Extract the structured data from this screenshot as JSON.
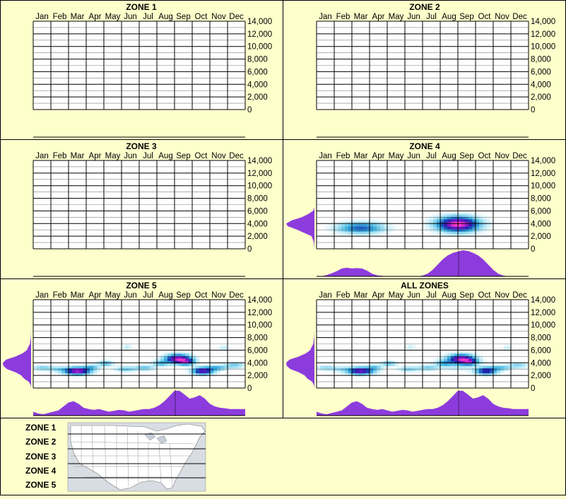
{
  "chart_data": {
    "type": "heatmap",
    "months": [
      "Jan",
      "Feb",
      "Mar",
      "Apr",
      "May",
      "Jun",
      "Jul",
      "Aug",
      "Sep",
      "Oct",
      "Nov",
      "Dec"
    ],
    "y_ticks": [
      "14,000",
      "12,000",
      "10,000",
      "8,000",
      "6,000",
      "4,000",
      "2,000",
      "0"
    ],
    "ylim": [
      0,
      14000
    ],
    "panels": [
      {
        "title": "ZONE 1",
        "has_data": false,
        "blobs": [],
        "month_profile": [],
        "elev_profile": []
      },
      {
        "title": "ZONE 2",
        "has_data": false,
        "blobs": [],
        "month_profile": [],
        "elev_profile": []
      },
      {
        "title": "ZONE 3",
        "has_data": false,
        "blobs": [],
        "month_profile": [],
        "elev_profile": []
      },
      {
        "title": "ZONE 4",
        "has_data": true,
        "blobs": [
          {
            "month": 2.5,
            "elev": 3300,
            "sx": 0.9,
            "sy": 600,
            "w": 0.25
          },
          {
            "month": 8.0,
            "elev": 3900,
            "sx": 0.8,
            "sy": 800,
            "w": 0.5
          }
        ],
        "month_profile": [
          0,
          0,
          0.05,
          0.12,
          0.2,
          0.3,
          0.33,
          0.3,
          0.32,
          0.3,
          0.22,
          0.1,
          0.04,
          0.02,
          0,
          0,
          0,
          0,
          0,
          0,
          0,
          0.03,
          0.1,
          0.25,
          0.45,
          0.65,
          0.8,
          0.9,
          0.95,
          1.0,
          0.97,
          0.9,
          0.8,
          0.65,
          0.45,
          0.25,
          0.1,
          0.03,
          0,
          0,
          0,
          0,
          0
        ],
        "elev_profile": [
          [
            0,
            0
          ],
          [
            1000,
            0.02
          ],
          [
            2000,
            0.1
          ],
          [
            3000,
            0.6
          ],
          [
            3600,
            0.95
          ],
          [
            4000,
            1.0
          ],
          [
            4500,
            0.8
          ],
          [
            5000,
            0.45
          ],
          [
            5500,
            0.22
          ],
          [
            6000,
            0.05
          ],
          [
            6500,
            0
          ]
        ]
      },
      {
        "title": "ZONE 5",
        "has_data": true,
        "blobs": [
          {
            "month": 0.5,
            "elev": 3200,
            "sx": 0.4,
            "sy": 300,
            "w": 0.25
          },
          {
            "month": 1.4,
            "elev": 3000,
            "sx": 0.4,
            "sy": 300,
            "w": 0.2
          },
          {
            "month": 2.5,
            "elev": 2700,
            "sx": 0.5,
            "sy": 400,
            "w": 1.0
          },
          {
            "month": 3.3,
            "elev": 3300,
            "sx": 0.3,
            "sy": 300,
            "w": 0.3
          },
          {
            "month": 4.1,
            "elev": 3900,
            "sx": 0.3,
            "sy": 300,
            "w": 0.35
          },
          {
            "month": 5.2,
            "elev": 3000,
            "sx": 0.4,
            "sy": 300,
            "w": 0.3
          },
          {
            "month": 5.3,
            "elev": 6500,
            "sx": 0.2,
            "sy": 300,
            "w": 0.15
          },
          {
            "month": 6.3,
            "elev": 3200,
            "sx": 0.4,
            "sy": 300,
            "w": 0.3
          },
          {
            "month": 7.2,
            "elev": 3900,
            "sx": 0.3,
            "sy": 300,
            "w": 0.35
          },
          {
            "month": 8.2,
            "elev": 4600,
            "sx": 0.5,
            "sy": 500,
            "w": 1.0
          },
          {
            "month": 8.7,
            "elev": 4100,
            "sx": 0.3,
            "sy": 300,
            "w": 0.6
          },
          {
            "month": 9.6,
            "elev": 2700,
            "sx": 0.4,
            "sy": 400,
            "w": 0.85
          },
          {
            "month": 10.4,
            "elev": 3200,
            "sx": 0.4,
            "sy": 300,
            "w": 0.35
          },
          {
            "month": 11.4,
            "elev": 3600,
            "sx": 0.4,
            "sy": 300,
            "w": 0.3
          },
          {
            "month": 10.8,
            "elev": 6400,
            "sx": 0.2,
            "sy": 300,
            "w": 0.15
          }
        ],
        "month_profile": [
          0.15,
          0.08,
          0.05,
          0.1,
          0.15,
          0.2,
          0.35,
          0.5,
          0.55,
          0.45,
          0.3,
          0.25,
          0.22,
          0.25,
          0.2,
          0.15,
          0.18,
          0.22,
          0.2,
          0.15,
          0.18,
          0.22,
          0.25,
          0.25,
          0.3,
          0.4,
          0.55,
          0.75,
          0.95,
          0.95,
          0.8,
          0.65,
          0.7,
          0.78,
          0.65,
          0.45,
          0.35,
          0.3,
          0.28,
          0.25,
          0.25,
          0.25,
          0.25
        ],
        "elev_profile": [
          [
            0,
            0
          ],
          [
            500,
            0.02
          ],
          [
            1000,
            0.08
          ],
          [
            1500,
            0.25
          ],
          [
            2000,
            0.35
          ],
          [
            2500,
            0.55
          ],
          [
            3000,
            0.85
          ],
          [
            3500,
            0.98
          ],
          [
            4000,
            1.0
          ],
          [
            4500,
            0.88
          ],
          [
            5000,
            0.55
          ],
          [
            5500,
            0.3
          ],
          [
            6000,
            0.15
          ],
          [
            6500,
            0.1
          ],
          [
            7000,
            0.04
          ],
          [
            8000,
            0.01
          ],
          [
            9000,
            0
          ]
        ]
      },
      {
        "title": "ALL ZONES",
        "has_data": true,
        "blobs": [
          {
            "month": 0.5,
            "elev": 3200,
            "sx": 0.4,
            "sy": 300,
            "w": 0.25
          },
          {
            "month": 1.4,
            "elev": 3000,
            "sx": 0.4,
            "sy": 300,
            "w": 0.2
          },
          {
            "month": 2.5,
            "elev": 2700,
            "sx": 0.5,
            "sy": 400,
            "w": 1.0
          },
          {
            "month": 3.3,
            "elev": 3300,
            "sx": 0.3,
            "sy": 300,
            "w": 0.3
          },
          {
            "month": 4.1,
            "elev": 3900,
            "sx": 0.3,
            "sy": 300,
            "w": 0.35
          },
          {
            "month": 5.2,
            "elev": 3000,
            "sx": 0.4,
            "sy": 300,
            "w": 0.3
          },
          {
            "month": 5.3,
            "elev": 6500,
            "sx": 0.2,
            "sy": 300,
            "w": 0.15
          },
          {
            "month": 6.3,
            "elev": 3200,
            "sx": 0.4,
            "sy": 300,
            "w": 0.3
          },
          {
            "month": 7.2,
            "elev": 3900,
            "sx": 0.3,
            "sy": 300,
            "w": 0.35
          },
          {
            "month": 8.2,
            "elev": 4600,
            "sx": 0.5,
            "sy": 500,
            "w": 1.0
          },
          {
            "month": 8.7,
            "elev": 4100,
            "sx": 0.3,
            "sy": 300,
            "w": 0.6
          },
          {
            "month": 9.6,
            "elev": 2700,
            "sx": 0.4,
            "sy": 400,
            "w": 0.85
          },
          {
            "month": 10.4,
            "elev": 3200,
            "sx": 0.4,
            "sy": 300,
            "w": 0.35
          },
          {
            "month": 11.4,
            "elev": 3600,
            "sx": 0.4,
            "sy": 300,
            "w": 0.3
          },
          {
            "month": 10.8,
            "elev": 6400,
            "sx": 0.2,
            "sy": 300,
            "w": 0.15
          },
          {
            "month": 8.0,
            "elev": 3900,
            "sx": 0.8,
            "sy": 800,
            "w": 0.2
          }
        ],
        "month_profile": [
          0.15,
          0.08,
          0.05,
          0.1,
          0.15,
          0.2,
          0.35,
          0.5,
          0.55,
          0.45,
          0.3,
          0.25,
          0.22,
          0.25,
          0.2,
          0.15,
          0.18,
          0.22,
          0.2,
          0.15,
          0.18,
          0.22,
          0.25,
          0.25,
          0.3,
          0.4,
          0.55,
          0.75,
          0.95,
          0.95,
          0.8,
          0.65,
          0.7,
          0.78,
          0.65,
          0.45,
          0.35,
          0.3,
          0.28,
          0.25,
          0.25,
          0.25,
          0.25
        ],
        "elev_profile": [
          [
            0,
            0
          ],
          [
            500,
            0.02
          ],
          [
            1000,
            0.08
          ],
          [
            1500,
            0.25
          ],
          [
            2000,
            0.35
          ],
          [
            2500,
            0.55
          ],
          [
            3000,
            0.85
          ],
          [
            3500,
            0.98
          ],
          [
            4000,
            1.0
          ],
          [
            4500,
            0.88
          ],
          [
            5000,
            0.55
          ],
          [
            5500,
            0.3
          ],
          [
            6000,
            0.15
          ],
          [
            6500,
            0.1
          ],
          [
            7000,
            0.04
          ],
          [
            8000,
            0.01
          ],
          [
            9000,
            0
          ]
        ]
      }
    ]
  },
  "legend": {
    "zones": [
      "ZONE 1",
      "ZONE 2",
      "ZONE 3",
      "ZONE 4",
      "ZONE 5"
    ]
  },
  "colors": {
    "background": "#ffffcc",
    "grid": "#000000",
    "profile_fill": "#8c3cdc",
    "heat_low": "#c8f0ff",
    "heat_mid": "#0a1e8c",
    "heat_high": "#ff3cc8"
  }
}
